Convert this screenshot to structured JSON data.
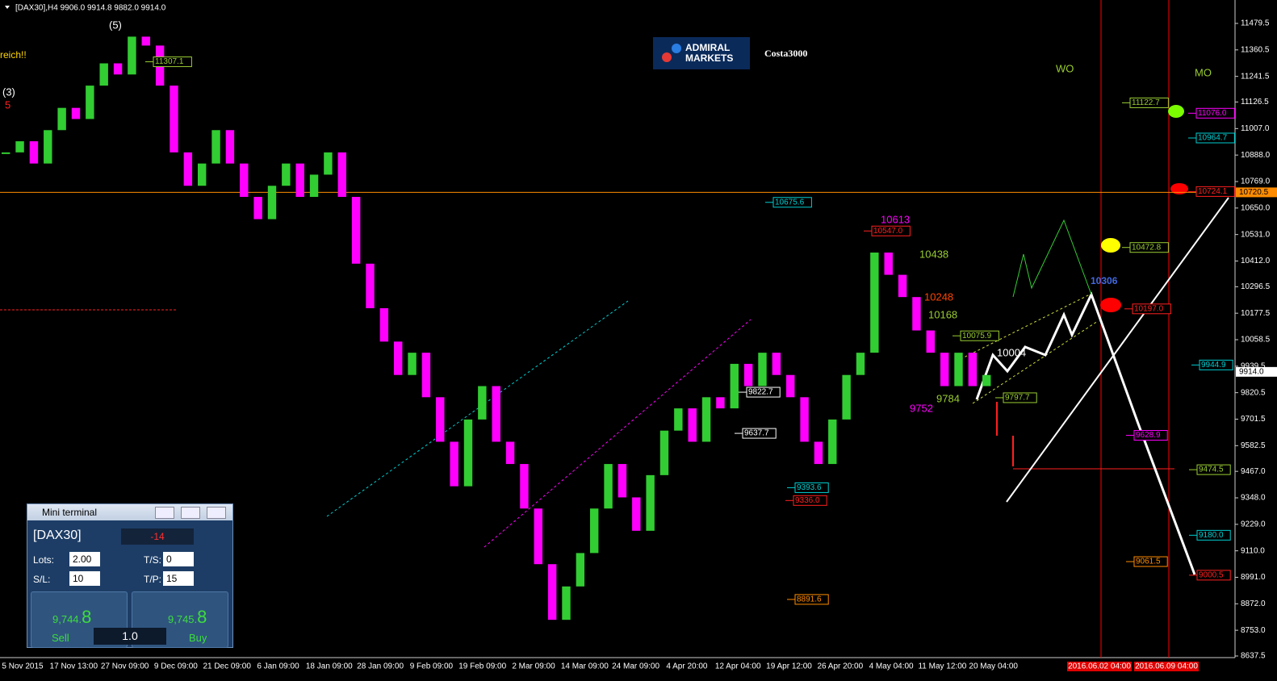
{
  "header": {
    "title": "[DAX30],H4  9906.0 9914.8 9882.0 9914.0"
  },
  "logo": {
    "line1": "ADMIRAL",
    "line2": "MARKETS"
  },
  "author": "Costa3000",
  "price_axis": {
    "ylim": [
      8637.5,
      11479.5
    ],
    "ticks": [
      11479.5,
      11360.5,
      11241.5,
      11126.5,
      {
        "value": 11007,
        "label": "11007.0"
      },
      {
        "value": 10888,
        "label": "10888.0"
      },
      {
        "value": 10769,
        "label": "10769.0"
      },
      {
        "value": 10650,
        "label": "10650.0"
      },
      {
        "value": 10531,
        "label": "10531.0"
      },
      {
        "value": 10412,
        "label": "10412.0"
      },
      10296.5,
      10177.5,
      10058.5,
      9939.5,
      9820.5,
      9701.5,
      9582.5,
      {
        "value": 9467,
        "label": "9467.0"
      },
      {
        "value": 9348,
        "label": "9348.0"
      },
      {
        "value": 9229,
        "label": "9229.0"
      },
      {
        "value": 9110,
        "label": "9110.0"
      },
      {
        "value": 8991,
        "label": "8991.0"
      },
      {
        "value": 8872,
        "label": "8872.0"
      },
      {
        "value": 8753,
        "label": "8753.0"
      },
      8637.5
    ],
    "current": {
      "value": 9914,
      "label": "9914.0"
    },
    "line_level": {
      "value": 10720.5,
      "label": "10720.5"
    }
  },
  "time_axis": {
    "labels": [
      "5 Nov 2015",
      "17 Nov 13:00",
      "27 Nov 09:00",
      "9 Dec 09:00",
      "21 Dec 09:00",
      "6 Jan 09:00",
      "18 Jan 09:00",
      "28 Jan 09:00",
      "9 Feb 09:00",
      "19 Feb 09:00",
      "2 Mar 09:00",
      "14 Mar 09:00",
      "24 Mar 09:00",
      "4 Apr 20:00",
      "12 Apr 04:00",
      "19 Apr 12:00",
      "26 Apr 20:00",
      "4 May 04:00",
      "11 May 12:00",
      "20 May 04:00"
    ],
    "markers": [
      "2016.06.02 04:00",
      "2016.06.09 04:00"
    ]
  },
  "candles": {
    "closes": [
      10900,
      10950,
      10850,
      11000,
      11100,
      11050,
      11200,
      11300,
      11250,
      11420,
      11380,
      11200,
      10900,
      10750,
      10850,
      11000,
      10850,
      10700,
      10600,
      10750,
      10850,
      10700,
      10800,
      10900,
      10700,
      10400,
      10200,
      10050,
      9900,
      10000,
      9800,
      9600,
      9400,
      9700,
      9850,
      9600,
      9500,
      9300,
      9050,
      8800,
      8950,
      9100,
      9300,
      9500,
      9350,
      9200,
      9450,
      9650,
      9750,
      9600,
      9800,
      9750,
      9950,
      9850,
      10000,
      9900,
      9800,
      9600,
      9500,
      9700,
      9900,
      10000,
      10450,
      10350,
      10250,
      10100,
      10000,
      9850,
      10000,
      9850,
      9900
    ],
    "up_color": "#32cd32",
    "down_color": "#ff00ff"
  },
  "levels": [
    {
      "label": "11307.1",
      "price": 11307.1,
      "color": "#9acd32"
    },
    {
      "label": "10675.6",
      "price": 10675.6,
      "color": "#00ced1"
    },
    {
      "label": "10547.0",
      "price": 10547,
      "color": "#ff2020"
    },
    {
      "label": "11122.7",
      "price": 11122.7,
      "color": "#9acd32"
    },
    {
      "label": "11076.0",
      "price": 11076,
      "color": "#ff00ff"
    },
    {
      "label": "10964.7",
      "price": 10964.7,
      "color": "#00ced1"
    },
    {
      "label": "10724.1",
      "price": 10724.1,
      "color": "#ff2020"
    },
    {
      "label": "10472.8",
      "price": 10472.8,
      "color": "#9acd32"
    },
    {
      "label": "10197.0",
      "price": 10197,
      "color": "#ff2020"
    },
    {
      "label": "10075.9",
      "price": 10075.9,
      "color": "#9acd32"
    },
    {
      "label": "9944.9",
      "price": 9944.9,
      "color": "#00ced1"
    },
    {
      "label": "9822.7",
      "price": 9822.7,
      "color": "#ffffff"
    },
    {
      "label": "9797.7",
      "price": 9797.7,
      "color": "#9acd32"
    },
    {
      "label": "9637.7",
      "price": 9637.7,
      "color": "#ffffff"
    },
    {
      "label": "9628.9",
      "price": 9628.9,
      "color": "#ff00ff"
    },
    {
      "label": "9474.5",
      "price": 9474.5,
      "color": "#9acd32"
    },
    {
      "label": "9393.6",
      "price": 9393.6,
      "color": "#00ced1"
    },
    {
      "label": "9336.0",
      "price": 9336,
      "color": "#ff2020"
    },
    {
      "label": "9180.0",
      "price": 9180,
      "color": "#00ced1"
    },
    {
      "label": "9061.5",
      "price": 9061.5,
      "color": "#ff8c00"
    },
    {
      "label": "9000.5",
      "price": 9000.5,
      "color": "#ff2020"
    },
    {
      "label": "8891.6",
      "price": 8891.6,
      "color": "#ff8c00"
    }
  ],
  "annotations": [
    {
      "text": "(5)",
      "color": "#ffffff"
    },
    {
      "text": "(3)",
      "color": "#ffffff"
    },
    {
      "text": "5",
      "color": "#ff2020"
    },
    {
      "text": "reich!!",
      "color": "#ffd700"
    },
    {
      "text": "WO",
      "color": "#9acd32"
    },
    {
      "text": "MO",
      "color": "#9acd32"
    },
    {
      "text": "10613",
      "color": "#ff00ff"
    },
    {
      "text": "10438",
      "color": "#9acd32"
    },
    {
      "text": "10248",
      "color": "#ff4500"
    },
    {
      "text": "10168",
      "color": "#9acd32"
    },
    {
      "text": "10306",
      "color": "#4169e1"
    },
    {
      "text": "10004",
      "color": "#ffffff"
    },
    {
      "text": "9784",
      "color": "#9acd32"
    },
    {
      "text": "9752",
      "color": "#ff00ff"
    }
  ],
  "mini_terminal": {
    "title": "Mini terminal",
    "symbol": "[DAX30]",
    "spread": "-14",
    "lots_label": "Lots:",
    "lots": "2.00",
    "ts_label": "T/S:",
    "ts": "0",
    "sl_label": "S/L:",
    "sl": "10",
    "tp_label": "T/P:",
    "tp": "15",
    "sell_main": "9,744.",
    "sell_big": "8",
    "buy_main": "9,745.",
    "buy_big": "8",
    "sell": "Sell",
    "buy": "Buy",
    "volume": "1.0"
  }
}
